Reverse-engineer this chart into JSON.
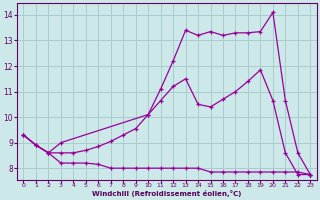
{
  "bg_color": "#cce8e8",
  "grid_color": "#aacccc",
  "line_color": "#990099",
  "xlabel": "Windchill (Refroidissement éolien,°C)",
  "ylabel_ticks": [
    8,
    9,
    10,
    11,
    12,
    13,
    14
  ],
  "xlim": [
    -0.5,
    23.5
  ],
  "ylim": [
    7.55,
    14.45
  ],
  "x_ticks": [
    0,
    1,
    2,
    3,
    4,
    5,
    6,
    7,
    8,
    9,
    10,
    11,
    12,
    13,
    14,
    15,
    16,
    17,
    18,
    19,
    20,
    21,
    22,
    23
  ],
  "series1_x": [
    0,
    1,
    2,
    3,
    4,
    5,
    6,
    7,
    8,
    9,
    10,
    11,
    12,
    13,
    14,
    15,
    16,
    17,
    18,
    19,
    20,
    21,
    22,
    23
  ],
  "series1_y": [
    9.3,
    8.9,
    8.6,
    8.2,
    8.2,
    8.2,
    8.15,
    8.0,
    8.0,
    8.0,
    8.0,
    8.0,
    8.0,
    8.0,
    8.0,
    7.85,
    7.85,
    7.85,
    7.85,
    7.85,
    7.85,
    7.85,
    7.85,
    7.75
  ],
  "series2_x": [
    0,
    1,
    2,
    3,
    4,
    5,
    6,
    7,
    8,
    9,
    10,
    11,
    12,
    13,
    14,
    15,
    16,
    17,
    18,
    19,
    20,
    21,
    22,
    23
  ],
  "series2_y": [
    9.3,
    8.9,
    8.6,
    8.6,
    8.6,
    8.7,
    8.85,
    9.05,
    9.3,
    9.55,
    10.1,
    10.65,
    11.2,
    11.5,
    10.5,
    10.4,
    10.7,
    11.0,
    11.4,
    11.85,
    10.65,
    8.6,
    7.75,
    7.75
  ],
  "series3_x": [
    0,
    1,
    2,
    3,
    10,
    11,
    12,
    13,
    14,
    15,
    16,
    17,
    18,
    19,
    20,
    21,
    22,
    23
  ],
  "series3_y": [
    9.3,
    8.9,
    8.6,
    9.0,
    10.1,
    11.1,
    12.2,
    13.4,
    13.2,
    13.35,
    13.2,
    13.3,
    13.3,
    13.35,
    14.1,
    10.65,
    8.6,
    7.75
  ]
}
